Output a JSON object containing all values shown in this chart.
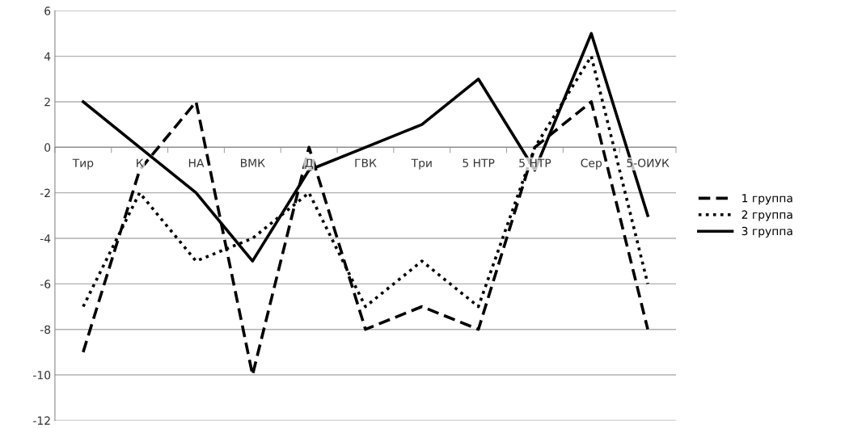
{
  "chart_data": {
    "type": "line",
    "categories": [
      "Тир",
      "К",
      "НА",
      "ВМК",
      "Д",
      "ГВК",
      "Три",
      "5 НТР",
      "5 НТР",
      "Сер",
      "5-ОИУК"
    ],
    "series": [
      {
        "name": "1 группа",
        "color": "#000000",
        "line_style": "dashed",
        "values": [
          -9,
          -1,
          2,
          -10,
          0,
          -8,
          -7,
          -8,
          0,
          2,
          -8
        ]
      },
      {
        "name": "2 группа",
        "color": "#000000",
        "line_style": "dotted",
        "values": [
          -7,
          -2,
          -5,
          -4,
          -2,
          -7,
          -5,
          -7,
          0,
          4,
          -6
        ]
      },
      {
        "name": "3 группа",
        "color": "#000000",
        "line_style": "solid",
        "values": [
          2,
          0,
          -2,
          -5,
          -1,
          0,
          1,
          3,
          -1,
          5,
          -3
        ]
      }
    ],
    "ylim": [
      -12,
      6
    ],
    "yticks": [
      -12,
      -10,
      -8,
      -6,
      -4,
      -2,
      0,
      2,
      4,
      6
    ],
    "grid": "y",
    "legend": "right",
    "marker": "none"
  }
}
